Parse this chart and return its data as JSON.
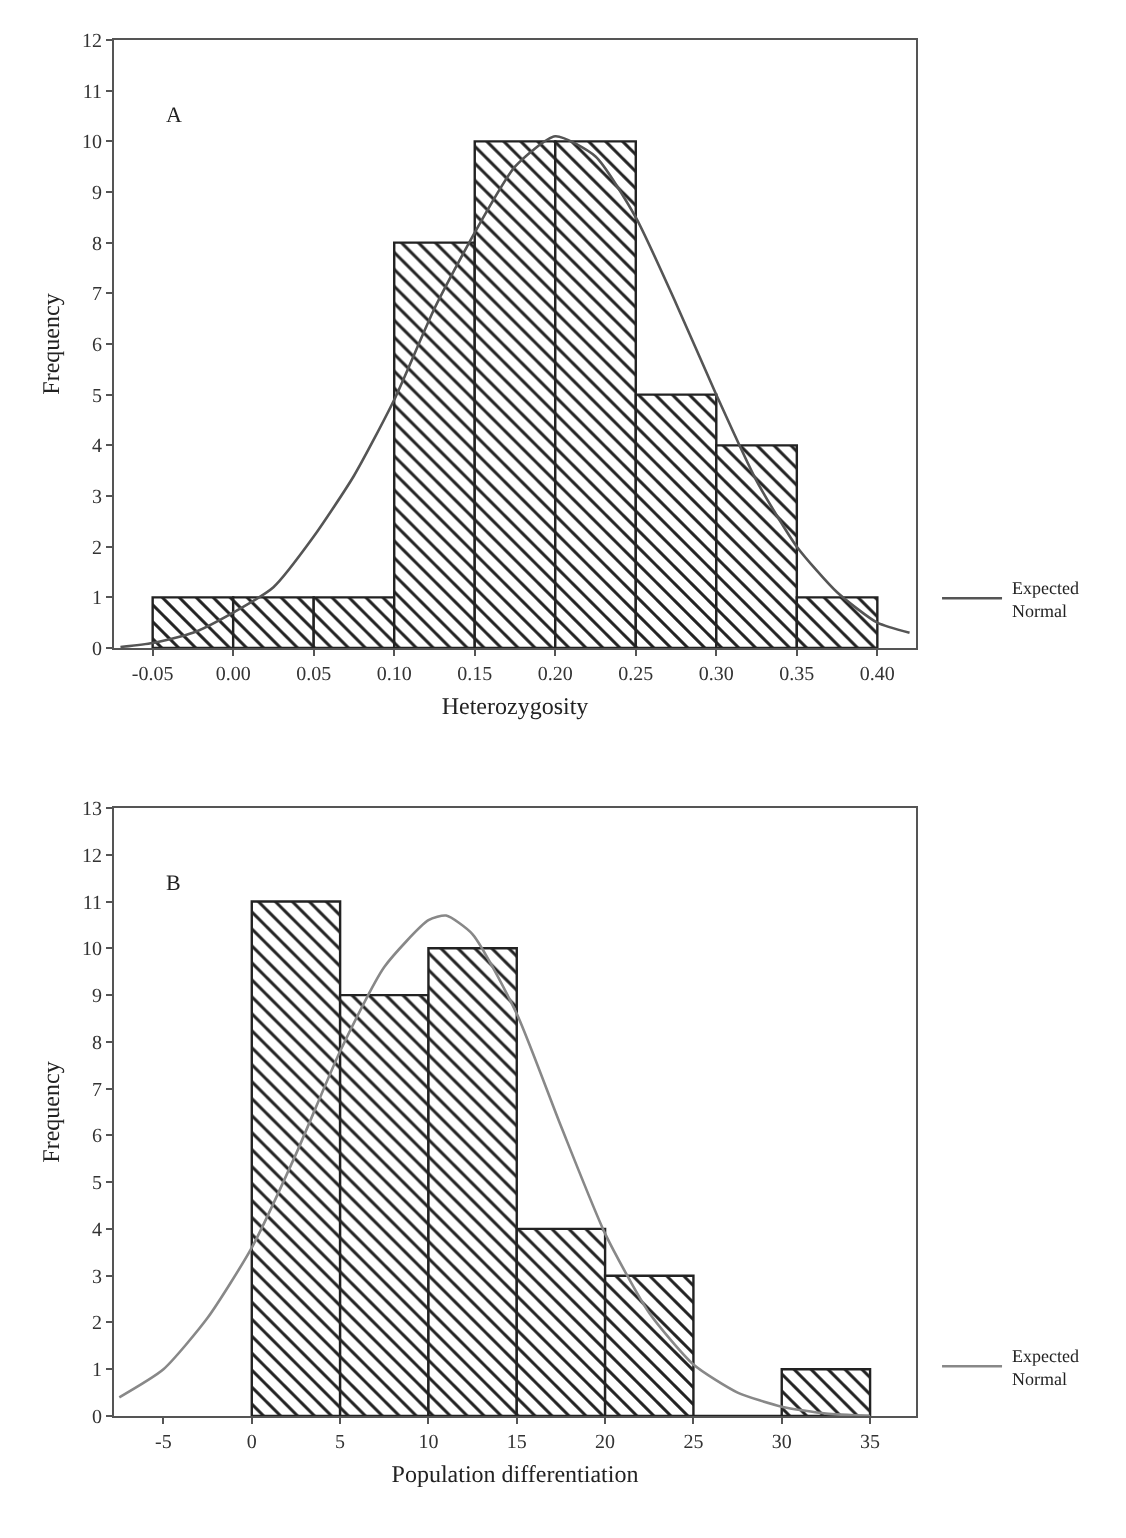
{
  "chart_data": [
    {
      "type": "histogram",
      "xlabel": "Heterozygosity",
      "ylabel": "Frequency",
      "annotations": [
        "A"
      ],
      "bins": [
        -0.05,
        0.0,
        0.05,
        0.1,
        0.15,
        0.2,
        0.25,
        0.3,
        0.35,
        0.4
      ],
      "values": [
        1,
        1,
        1,
        8,
        10,
        10,
        5,
        4,
        1
      ],
      "color": "#222222",
      "series": [
        {
          "type": "line",
          "name": "Expected Normal",
          "color": "#555555",
          "x": [
            -0.07,
            -0.05,
            -0.025,
            0.0,
            0.025,
            0.05,
            0.075,
            0.1,
            0.125,
            0.15,
            0.175,
            0.2,
            0.225,
            0.25,
            0.275,
            0.3,
            0.325,
            0.35,
            0.375,
            0.4,
            0.42
          ],
          "values": [
            0.02,
            0.1,
            0.3,
            0.7,
            1.2,
            2.2,
            3.4,
            4.9,
            6.7,
            8.2,
            9.5,
            10.1,
            9.7,
            8.5,
            6.8,
            5.0,
            3.3,
            2.0,
            1.1,
            0.5,
            0.3
          ]
        }
      ],
      "xlim": [
        -0.074,
        0.424
      ],
      "xticks": [
        {
          "value": -0.05,
          "label": "-0.05"
        },
        {
          "value": 0,
          "label": "0.00"
        },
        0.05,
        {
          "value": 0.1,
          "label": "0.10"
        },
        0.15,
        {
          "value": 0.2,
          "label": "0.20"
        },
        0.25,
        {
          "value": 0.3,
          "label": "0.30"
        },
        0.35,
        {
          "value": 0.4,
          "label": "0.40"
        }
      ],
      "ylim": [
        0,
        12
      ],
      "yticks": [
        0,
        1,
        2,
        3,
        4,
        5,
        6,
        7,
        8,
        9,
        10,
        11,
        12
      ],
      "grid": false,
      "legend": "bottom right",
      "marker": "none",
      "line_style": "solid"
    },
    {
      "type": "histogram",
      "xlabel": "Population differentiation",
      "ylabel": "Frequency",
      "annotations": [
        "B"
      ],
      "bins": [
        0,
        5,
        10,
        15,
        20,
        25,
        30,
        35
      ],
      "values": [
        11,
        9,
        10,
        4,
        3,
        0,
        1
      ],
      "color": "#222222",
      "series": [
        {
          "type": "line",
          "name": "Expected Normal",
          "color": "#888888",
          "x": [
            -7.5,
            -5,
            -2.5,
            0,
            2.5,
            5,
            7.5,
            10,
            11,
            12.5,
            15,
            17.5,
            20,
            22.5,
            25,
            27.5,
            30,
            32.5,
            35
          ],
          "values": [
            0.4,
            1.0,
            2.1,
            3.6,
            5.6,
            7.8,
            9.6,
            10.6,
            10.7,
            10.3,
            8.6,
            6.2,
            3.9,
            2.2,
            1.1,
            0.5,
            0.2,
            0.05,
            0.0
          ]
        }
      ],
      "xlim": [
        -7.8,
        37.6
      ],
      "xticks": [
        -5,
        0,
        5,
        10,
        15,
        20,
        25,
        30,
        35
      ],
      "ylim": [
        0,
        13
      ],
      "yticks": [
        0,
        1,
        2,
        3,
        4,
        5,
        6,
        7,
        8,
        9,
        10,
        11,
        12,
        13
      ],
      "grid": false,
      "legend": "bottom right",
      "marker": "none",
      "line_style": "solid"
    }
  ]
}
